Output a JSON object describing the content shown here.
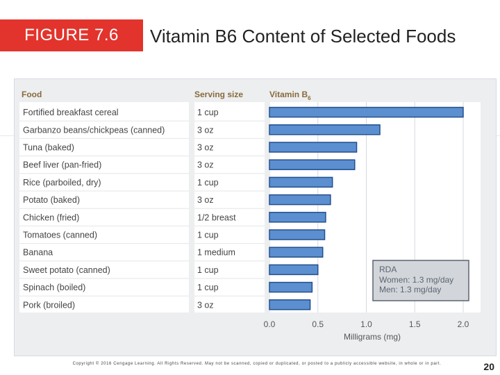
{
  "figure_label": "FIGURE 7.6",
  "title": "Vitamin B6 Content of Selected Foods",
  "footer": "Copyright © 2016 Cengage Learning. All Rights Reserved. May not be scanned, copied or duplicated, or posted to a publicly accessible website, in whole or in part.",
  "page_number": "20",
  "colors": {
    "label_bg": "#e2342c",
    "bar_fill": "#5b8fd0",
    "bar_stroke": "#244f8d",
    "header_text": "#8a6a3a"
  },
  "chart_data": {
    "type": "bar",
    "orientation": "horizontal",
    "columns": {
      "food": "Food",
      "serving": "Serving size",
      "value": "Vitamin B",
      "value_sub": "6"
    },
    "categories": [
      "Fortified breakfast cereal",
      "Garbanzo beans/chickpeas (canned)",
      "Tuna (baked)",
      "Beef liver (pan-fried)",
      "Rice (parboiled, dry)",
      "Potato (baked)",
      "Chicken (fried)",
      "Tomatoes (canned)",
      "Banana",
      "Sweet potato (canned)",
      "Spinach (boiled)",
      "Pork (broiled)"
    ],
    "serving_sizes": [
      "1 cup",
      "3 oz",
      "3 oz",
      "3 oz",
      "1 cup",
      "3 oz",
      "1/2 breast",
      "1 cup",
      "1 medium",
      "1 cup",
      "1 cup",
      "3 oz"
    ],
    "values": [
      2.0,
      1.14,
      0.9,
      0.88,
      0.65,
      0.63,
      0.58,
      0.57,
      0.55,
      0.5,
      0.44,
      0.42
    ],
    "xlim": [
      0,
      2.0
    ],
    "xticks": [
      "0.0",
      "0.5",
      "1.0",
      "1.5",
      "2.0"
    ],
    "xlabel": "Milligrams (mg)",
    "rda": {
      "title": "RDA",
      "women": "Women: 1.3 mg/day",
      "men": "Men: 1.3 mg/day"
    }
  }
}
